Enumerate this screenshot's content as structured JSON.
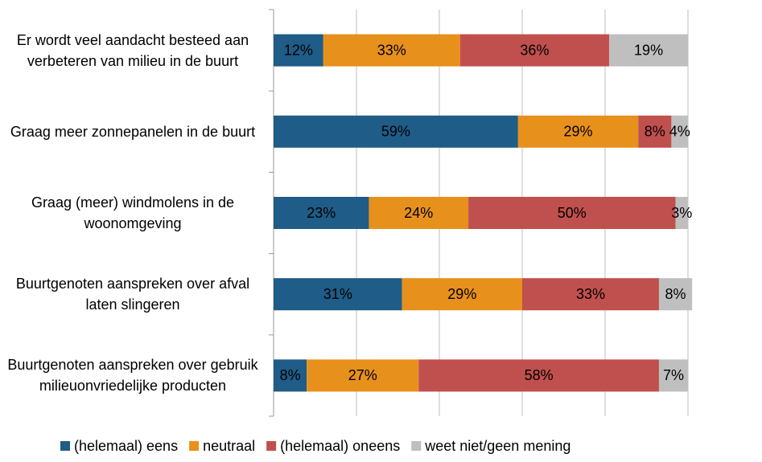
{
  "chart_data": {
    "type": "stacked-bar-horizontal",
    "categories": [
      "Er wordt veel aandacht besteed aan verbeteren van milieu in de buurt",
      "Graag meer zonnepanelen in de buurt",
      "Graag (meer) windmolens in de woonomgeving",
      "Buurtgenoten aanspreken over afval laten slingeren",
      "Buurtgenoten aanspreken over gebruik milieuonvriedelijke producten"
    ],
    "series": [
      {
        "name": "(helemaal) eens",
        "color": "#1f5c87",
        "values": [
          12,
          59,
          23,
          31,
          8
        ],
        "value_labels": [
          "12%",
          "59%",
          "23%",
          "31%",
          "8%"
        ]
      },
      {
        "name": "neutraal",
        "color": "#e8901c",
        "values": [
          33,
          29,
          24,
          29,
          27
        ],
        "value_labels": [
          "33%",
          "29%",
          "24%",
          "29%",
          "27%"
        ]
      },
      {
        "name": "(helemaal) oneens",
        "color": "#c0504d",
        "values": [
          36,
          8,
          50,
          33,
          58
        ],
        "value_labels": [
          "36%",
          "8%",
          "50%",
          "33%",
          "58%"
        ]
      },
      {
        "name": "weet niet/geen mening",
        "color": "#bfbfbf",
        "values": [
          19,
          4,
          3,
          8,
          7
        ],
        "value_labels": [
          "19%",
          "4%",
          "3%",
          "8%",
          "7%"
        ]
      }
    ],
    "xlim": [
      0,
      100
    ],
    "xticks": [
      0,
      20,
      40,
      60,
      80,
      100
    ],
    "grid": true,
    "legend": "bottom"
  }
}
